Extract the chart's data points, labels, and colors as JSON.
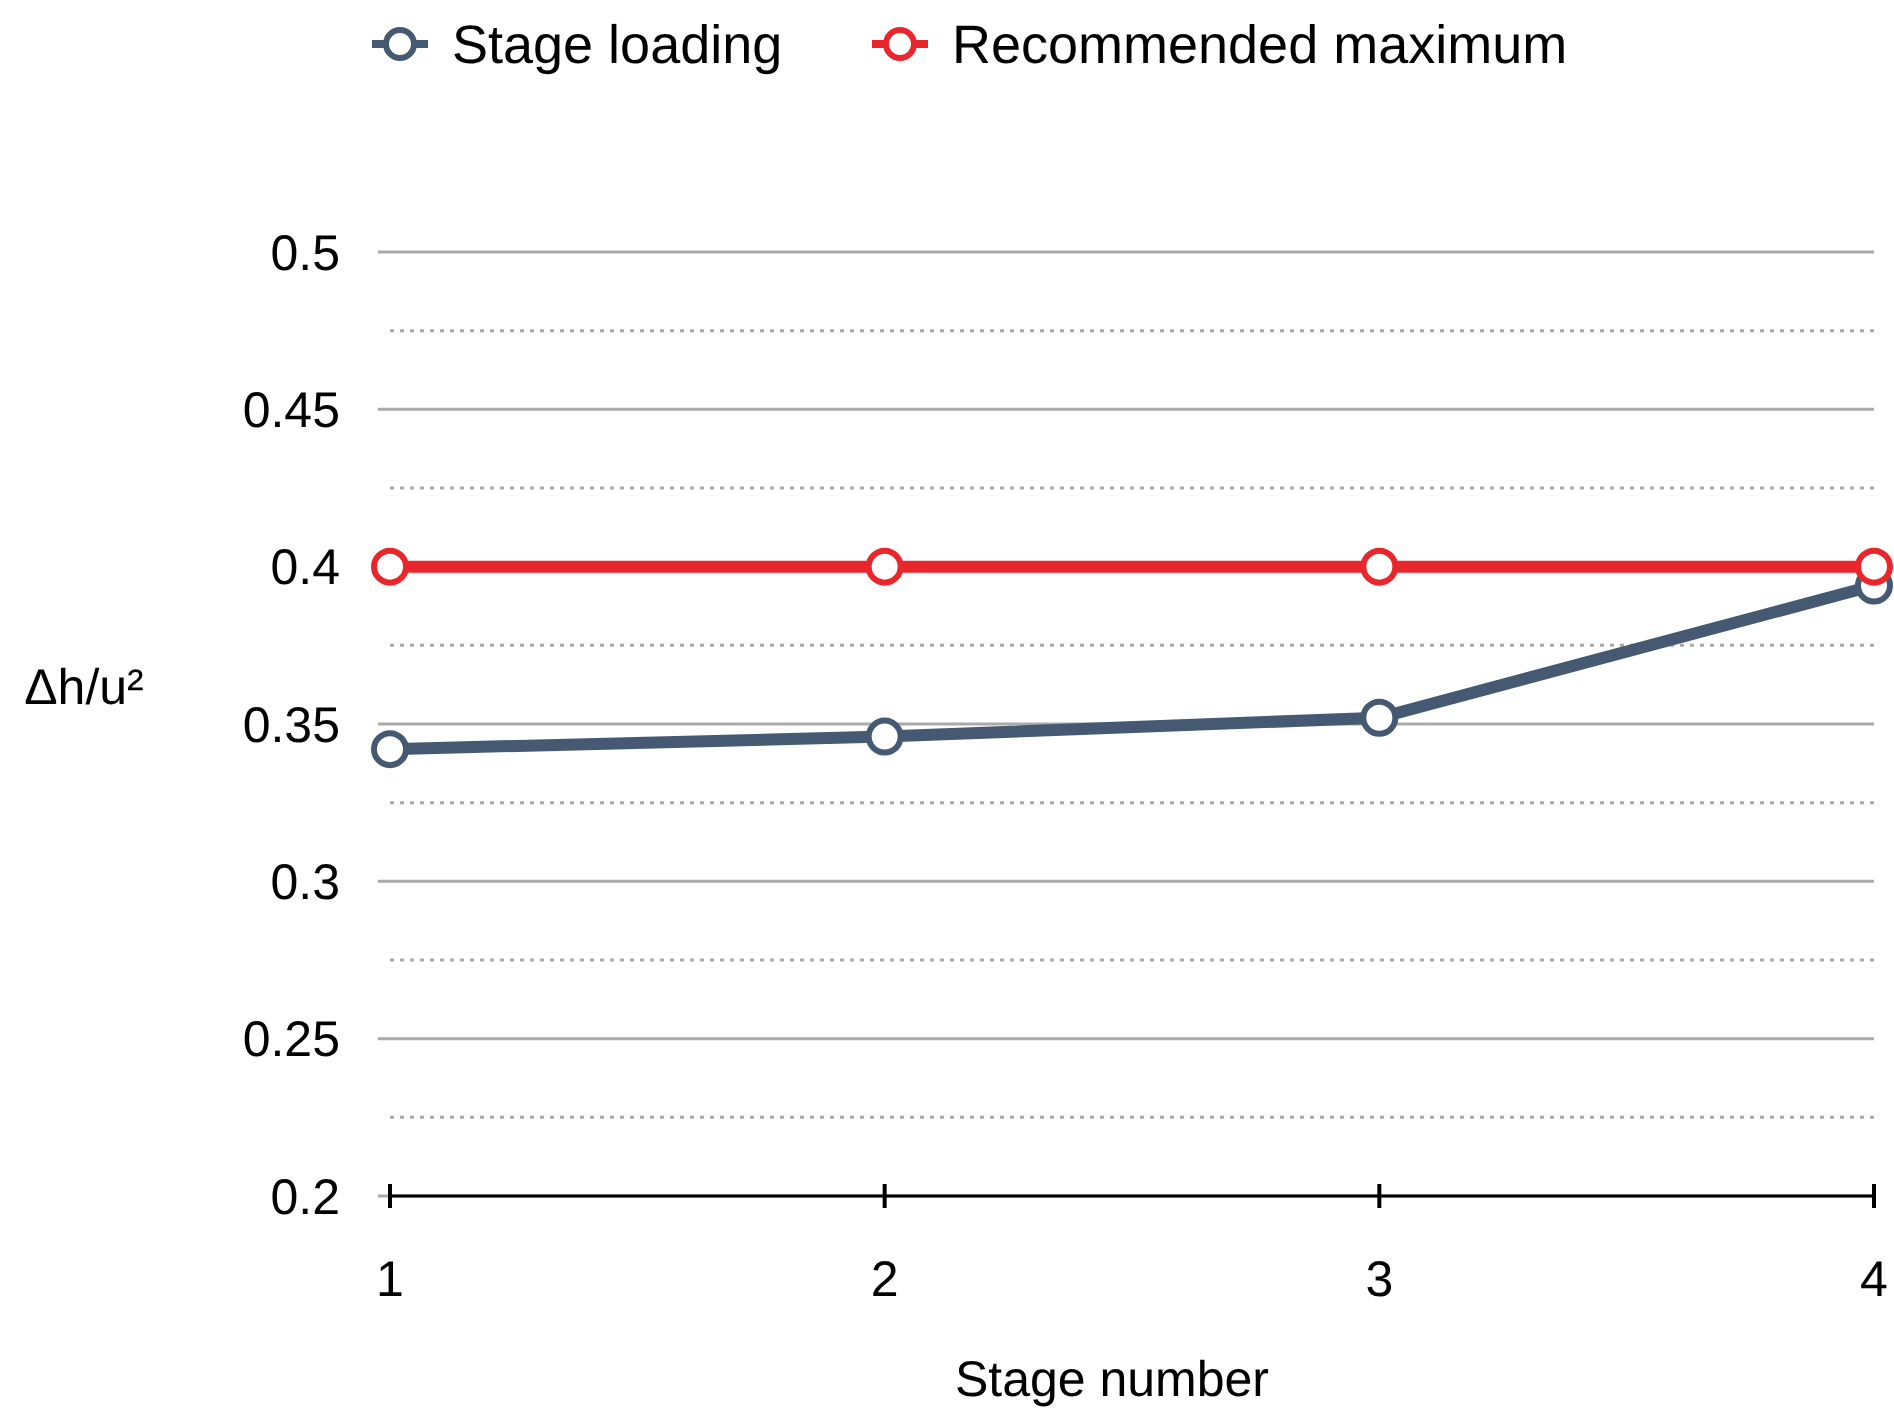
{
  "chart_data": {
    "type": "line",
    "xlabel": "Stage number",
    "ylabel": "Δh/u²",
    "x": [
      1,
      2,
      3,
      4
    ],
    "xlim": [
      1,
      4
    ],
    "xticks": [
      1,
      2,
      3,
      4
    ],
    "ylim": [
      0.2,
      0.5
    ],
    "yticks": [
      0.2,
      {
        "value": 0.225,
        "label": null
      },
      0.25,
      {
        "value": 0.275,
        "label": null
      },
      0.3,
      {
        "value": 0.325,
        "label": null
      },
      0.35,
      {
        "value": 0.375,
        "label": null
      },
      0.4,
      {
        "value": 0.425,
        "label": null
      },
      0.45,
      {
        "value": 0.475,
        "label": null
      },
      0.5
    ],
    "series": [
      {
        "name": "Stage loading",
        "color": "#455a72",
        "values": [
          0.342,
          0.346,
          0.352,
          0.394
        ]
      },
      {
        "name": "Recommended maximum",
        "color": "#e8262b",
        "values": [
          0.4,
          0.4,
          0.4,
          0.4
        ]
      }
    ],
    "grid": "y",
    "legend": "top",
    "marker": "circle",
    "line_style": "solid"
  }
}
